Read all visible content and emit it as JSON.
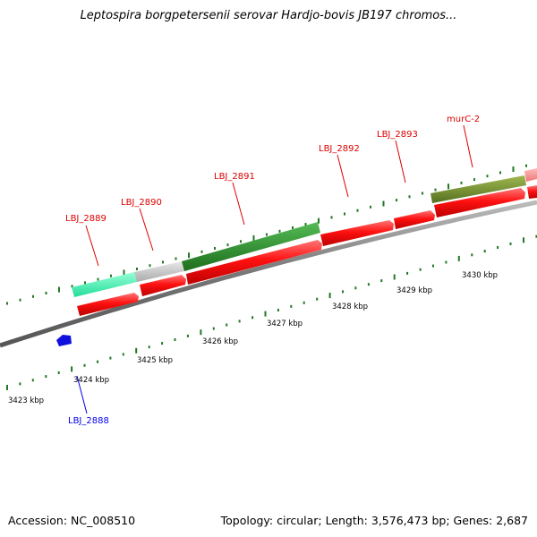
{
  "title": "Leptospira borgpetersenii serovar Hardjo-bovis JB197 chromos...",
  "footer": {
    "accession": "Accession: NC_008510",
    "summary": "Topology: circular; Length: 3,576,473 bp; Genes: 2,687"
  },
  "scale_labels": [
    "3423 kbp",
    "3424 kbp",
    "3425 kbp",
    "3426 kbp",
    "3427 kbp",
    "3428 kbp",
    "3429 kbp",
    "3430 kbp"
  ],
  "gene_labels": [
    {
      "text": "LBJ_2888",
      "color": "#0000ee"
    },
    {
      "text": "LBJ_2889",
      "color": "#dd0000"
    },
    {
      "text": "LBJ_2890",
      "color": "#dd0000"
    },
    {
      "text": "LBJ_2891",
      "color": "#dd0000"
    },
    {
      "text": "LBJ_2892",
      "color": "#dd0000"
    },
    {
      "text": "LBJ_2893",
      "color": "#dd0000"
    },
    {
      "text": "murC-2",
      "color": "#dd0000"
    }
  ],
  "colors": {
    "forward_cds": "#ee1111",
    "reverse_cds": "#1111dd",
    "feature_green": "#228b22",
    "feature_olive": "#6b8e23",
    "feature_aqua": "#33ffaa",
    "feature_grey": "#c8c8c8",
    "feature_pink": "#f08080",
    "backbone": "#888888",
    "tick": "#227722"
  }
}
